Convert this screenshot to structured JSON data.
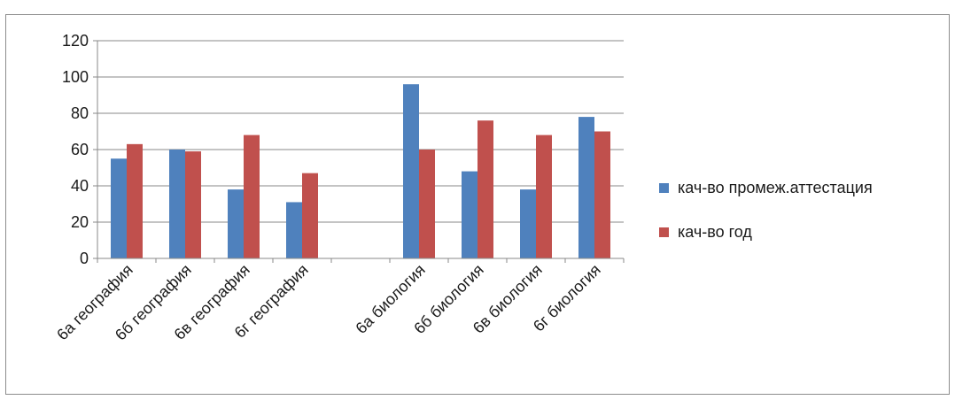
{
  "chart_data": {
    "type": "bar",
    "categories": [
      "6а география",
      "6б география",
      "6в география",
      "6г география",
      "",
      "6а биология",
      "6б биология",
      "6в биология",
      "6г биология"
    ],
    "series": [
      {
        "name": "кач-во промеж.аттестация",
        "color": "#4f81bd",
        "values": [
          55,
          60,
          38,
          31,
          null,
          96,
          48,
          38,
          78
        ]
      },
      {
        "name": "кач-во год",
        "color": "#c0504d",
        "values": [
          63,
          59,
          68,
          47,
          null,
          60,
          76,
          68,
          70
        ]
      }
    ],
    "ylim": [
      0,
      120
    ],
    "yticks": [
      0,
      20,
      40,
      60,
      80,
      100,
      120
    ],
    "grid": true,
    "legend_position": "right"
  }
}
